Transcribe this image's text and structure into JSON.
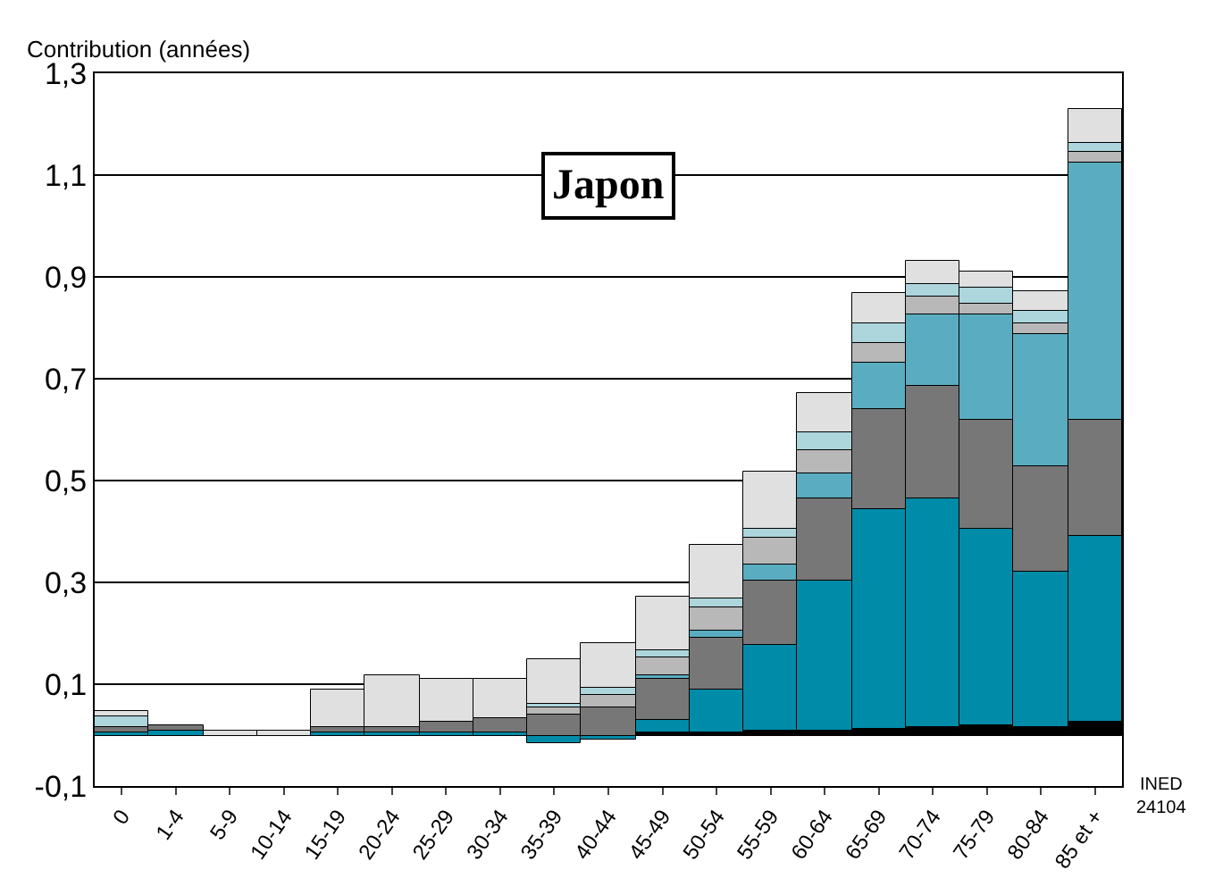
{
  "chart_data": {
    "type": "bar",
    "title": "Japon",
    "ylabel": "Contribution (années)",
    "annotations": [
      "INED\n24104"
    ],
    "categories": [
      "0",
      "1-4",
      "5-9",
      "10-14",
      "15-19",
      "20-24",
      "25-29",
      "30-34",
      "35-39",
      "40-44",
      "45-49",
      "50-54",
      "55-59",
      "60-64",
      "65-69",
      "70-74",
      "75-79",
      "80-84",
      "85 et +"
    ],
    "stacked": true,
    "grid": "y",
    "ylim": [
      -0.1,
      1.3
    ],
    "yticks": [
      {
        "value": -0.1,
        "label": "-0,1"
      },
      {
        "value": 0.1,
        "label": "0,1"
      },
      {
        "value": 0.3,
        "label": "0,3"
      },
      {
        "value": 0.5,
        "label": "0,5"
      },
      {
        "value": 0.7,
        "label": "0,7"
      },
      {
        "value": 0.9,
        "label": "0,9"
      },
      {
        "value": 1.1,
        "label": "1,1"
      },
      {
        "value": 1.3,
        "label": "1,3"
      }
    ],
    "series": [
      {
        "color": "#000000",
        "values": [
          null,
          null,
          null,
          null,
          null,
          null,
          null,
          null,
          null,
          null,
          0.006,
          0.006,
          0.008,
          0.01,
          0.013,
          0.015,
          0.02,
          0.015,
          0.025
        ]
      },
      {
        "color": "#008ca8",
        "values": [
          0.006,
          0.008,
          null,
          null,
          0.006,
          0.006,
          0.006,
          0.006,
          -0.015,
          -0.01,
          0.024,
          0.083,
          0.17,
          0.292,
          0.431,
          0.449,
          0.386,
          0.307,
          0.367
        ]
      },
      {
        "color": "#777777",
        "values": [
          0.01,
          0.012,
          null,
          null,
          0.01,
          0.01,
          0.02,
          0.027,
          0.042,
          0.056,
          0.081,
          0.103,
          0.124,
          0.162,
          0.195,
          0.222,
          0.214,
          0.207,
          0.228
        ]
      },
      {
        "color": "#5aacc0",
        "values": [
          null,
          null,
          null,
          null,
          null,
          null,
          null,
          null,
          null,
          null,
          0.006,
          0.014,
          0.034,
          0.05,
          0.091,
          0.142,
          0.208,
          0.26,
          0.506
        ]
      },
      {
        "color": "#b8b8b8",
        "values": [
          null,
          null,
          null,
          null,
          null,
          null,
          null,
          null,
          0.012,
          0.024,
          0.036,
          0.046,
          0.05,
          0.047,
          0.039,
          0.032,
          0.02,
          0.019,
          0.018
        ]
      },
      {
        "color": "#acd5dc",
        "values": [
          0.02,
          null,
          null,
          null,
          null,
          null,
          null,
          null,
          0.008,
          0.012,
          0.014,
          0.017,
          0.02,
          0.032,
          0.039,
          0.026,
          0.032,
          0.025,
          0.02
        ]
      },
      {
        "color": "#e0e0e0",
        "values": [
          0.01,
          null,
          0.01,
          0.01,
          0.073,
          0.1,
          0.083,
          0.076,
          0.086,
          0.088,
          0.105,
          0.105,
          0.111,
          0.079,
          0.059,
          0.045,
          0.032,
          0.04,
          0.066
        ]
      }
    ]
  }
}
